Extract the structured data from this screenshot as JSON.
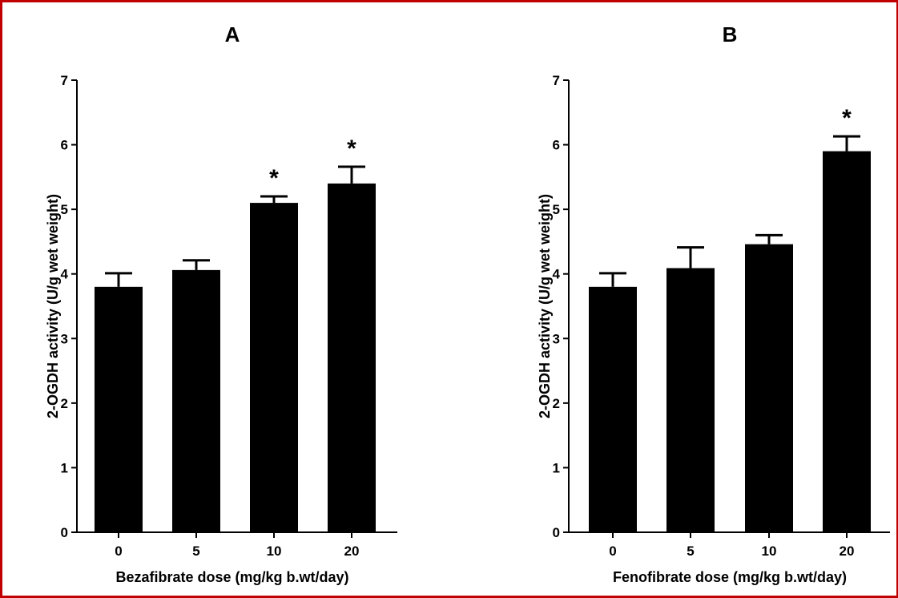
{
  "chart_data": [
    {
      "type": "bar",
      "panel": "A",
      "categories": [
        "0",
        "5",
        "10",
        "20"
      ],
      "values": [
        3.8,
        4.06,
        5.1,
        5.4
      ],
      "error": [
        0.21,
        0.15,
        0.1,
        0.26
      ],
      "significance": [
        "",
        "",
        "*",
        "*"
      ],
      "xlabel": "Bezafibrate dose (mg/kg b.wt/day)",
      "ylabel": "2-OGDH activity (U/g wet weight)",
      "ylim": [
        0,
        7
      ],
      "yticks": [
        "0",
        "1",
        "2",
        "3",
        "4",
        "5",
        "6",
        "7"
      ],
      "bar_color": "#000000"
    },
    {
      "type": "bar",
      "panel": "B",
      "categories": [
        "0",
        "5",
        "10",
        "20"
      ],
      "values": [
        3.8,
        4.09,
        4.46,
        5.9
      ],
      "error": [
        0.21,
        0.32,
        0.14,
        0.23
      ],
      "significance": [
        "",
        "",
        "",
        "*"
      ],
      "xlabel": "Fenofibrate dose (mg/kg b.wt/day)",
      "ylabel": "2-OGDH activity (U/g wet weight)",
      "ylim": [
        0,
        7
      ],
      "yticks": [
        "0",
        "1",
        "2",
        "3",
        "4",
        "5",
        "6",
        "7"
      ],
      "bar_color": "#000000"
    }
  ],
  "frame_color": "#c00000"
}
